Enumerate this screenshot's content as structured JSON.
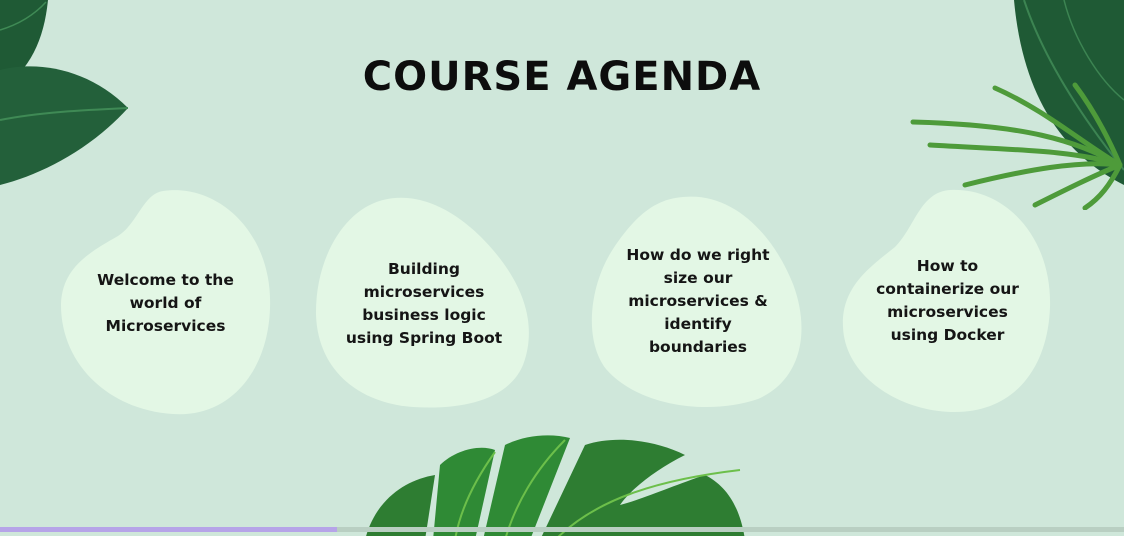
{
  "slide": {
    "title": "COURSE AGENDA",
    "background": "#cfe7da",
    "blob_color": "#e3f7e5",
    "agenda_items": [
      {
        "text": "Welcome to the world of Microservices"
      },
      {
        "text": "Building microservices business logic using Spring Boot"
      },
      {
        "text": "How do we right size our microservices & identify boundaries"
      },
      {
        "text": "How to containerize our microservices using Docker"
      }
    ],
    "decorations": [
      "leaf-top-left",
      "leaf-top-right",
      "palm-frond-right",
      "monstera-leaf-bottom"
    ]
  },
  "progress": {
    "fraction": 0.3,
    "color": "#b6a4e8"
  }
}
